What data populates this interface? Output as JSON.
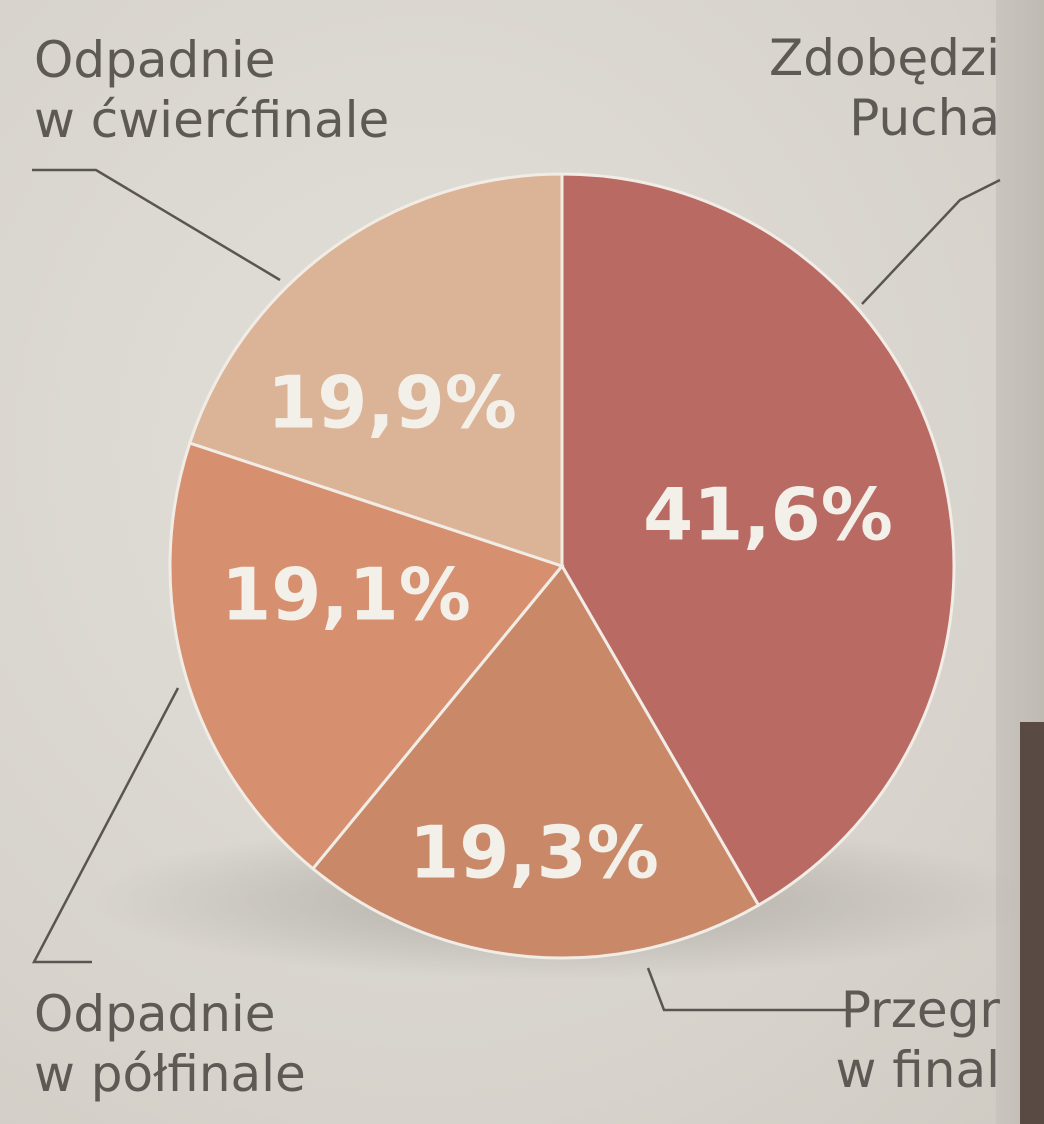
{
  "chart_data": {
    "type": "pie",
    "slices": [
      {
        "label": "Zdobędzie Pucha",
        "value": 41.6,
        "value_label": "41,6%",
        "color": "#b96a63"
      },
      {
        "label": "Przegra w finale",
        "value": 19.3,
        "value_label": "19,3%",
        "color": "#c98868"
      },
      {
        "label": "Odpadnie w półfinale",
        "value": 19.1,
        "value_label": "19,1%",
        "color": "#d6906f"
      },
      {
        "label": "Odpadnie w ćwierćfinale",
        "value": 19.9,
        "value_label": "19,9%",
        "color": "#dbb396"
      }
    ]
  },
  "labels": {
    "zdobedzie": {
      "line1": "Zdobędzi",
      "line2": "Pucha"
    },
    "przegra": {
      "line1": "Przegr",
      "line2": "w final"
    },
    "polfinale": {
      "line1": "Odpadnie",
      "line2": "w półfinale"
    },
    "cwiercfinale": {
      "line1": "Odpadnie",
      "line2": "w ćwierćfinale"
    }
  }
}
